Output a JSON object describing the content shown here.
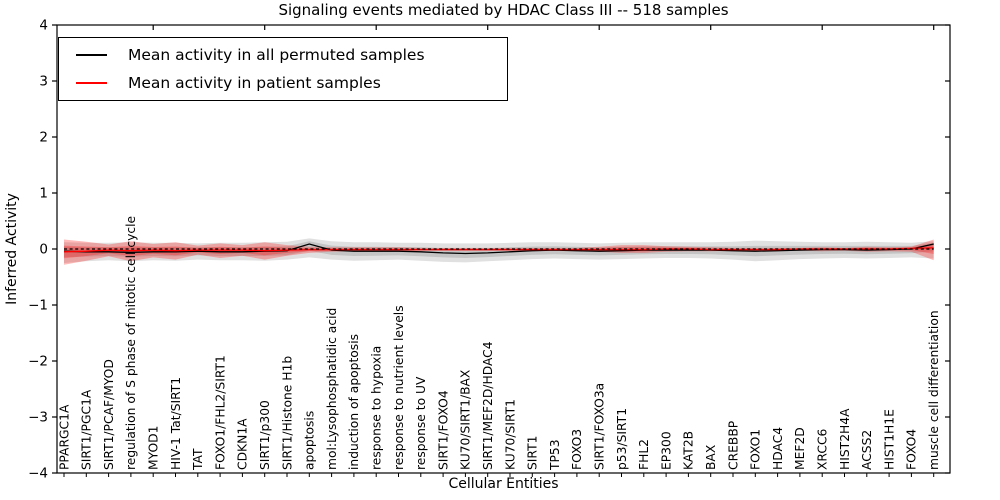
{
  "chart_data": {
    "type": "line",
    "title": "Signaling events mediated by HDAC Class III -- 518 samples",
    "xlabel": "Cellular Entities",
    "ylabel": "Inferred Activity",
    "ylim": [
      -4,
      4
    ],
    "ytick_labels": [
      "4",
      "3",
      "2",
      "1",
      "0",
      "−1",
      "−2",
      "−3",
      "−4"
    ],
    "yticks": [
      4,
      3,
      2,
      1,
      0,
      -1,
      -2,
      -3,
      -4
    ],
    "grid": false,
    "legend_position": "upper left",
    "legend": [
      {
        "label": "Mean activity in all permuted samples",
        "color": "#000000"
      },
      {
        "label": "Mean activity in patient samples",
        "color": "#ff0000"
      }
    ],
    "zero_line": 0,
    "categories": [
      "PPARGC1A",
      "SIRT1/PGC1A",
      "SIRT1/PCAF/MYOD",
      "regulation of S phase of mitotic cell cycle",
      "MYOD1",
      "HIV-1 Tat/SIRT1",
      "TAT",
      "FOXO1/FHL2/SIRT1",
      "CDKN1A",
      "SIRT1/p300",
      "SIRT1/Histone H1b",
      "apoptosis",
      "mol:Lysophosphatidic acid",
      "induction of apoptosis",
      "response to hypoxia",
      "response to nutrient levels",
      "response to UV",
      "SIRT1/FOXO4",
      "KU70/SIRT1/BAX",
      "SIRT1/MEF2D/HDAC4",
      "KU70/SIRT1",
      "SIRT1",
      "TP53",
      "FOXO3",
      "SIRT1/FOXO3a",
      "p53/SIRT1",
      "FHL2",
      "EP300",
      "KAT2B",
      "BAX",
      "CREBBP",
      "FOXO1",
      "HDAC4",
      "MEF2D",
      "XRCC6",
      "HIST2H4A",
      "ACSS2",
      "HIST1H1E",
      "FOXO4",
      "muscle cell differentiation"
    ],
    "top_tick_indices": [
      4,
      9,
      14,
      19,
      24,
      29,
      34,
      39
    ],
    "series": [
      {
        "name": "Mean activity in all permuted samples",
        "color": "#000000",
        "band_color": "rgba(0,0,0,0.12)",
        "values": [
          -0.04,
          -0.05,
          -0.05,
          -0.06,
          -0.05,
          -0.05,
          -0.04,
          -0.05,
          -0.05,
          -0.04,
          -0.03,
          0.09,
          -0.02,
          -0.04,
          -0.04,
          -0.04,
          -0.05,
          -0.07,
          -0.08,
          -0.07,
          -0.05,
          -0.03,
          -0.02,
          -0.03,
          -0.04,
          -0.03,
          -0.02,
          -0.02,
          -0.02,
          -0.02,
          -0.03,
          -0.04,
          -0.03,
          -0.02,
          -0.01,
          -0.01,
          -0.02,
          -0.01,
          0.0,
          0.09
        ],
        "band_upper": [
          0.12,
          0.11,
          0.11,
          0.12,
          0.11,
          0.11,
          0.1,
          0.11,
          0.11,
          0.12,
          0.13,
          0.19,
          0.14,
          0.12,
          0.12,
          0.11,
          0.11,
          0.1,
          0.1,
          0.1,
          0.11,
          0.12,
          0.12,
          0.11,
          0.1,
          0.11,
          0.12,
          0.12,
          0.12,
          0.12,
          0.13,
          0.15,
          0.14,
          0.13,
          0.12,
          0.12,
          0.13,
          0.12,
          0.11,
          0.14
        ],
        "band_lower": [
          -0.25,
          -0.22,
          -0.2,
          -0.22,
          -0.2,
          -0.21,
          -0.19,
          -0.2,
          -0.2,
          -0.21,
          -0.19,
          -0.15,
          -0.19,
          -0.21,
          -0.2,
          -0.19,
          -0.21,
          -0.23,
          -0.24,
          -0.22,
          -0.2,
          -0.18,
          -0.17,
          -0.18,
          -0.19,
          -0.18,
          -0.17,
          -0.16,
          -0.16,
          -0.17,
          -0.19,
          -0.22,
          -0.2,
          -0.18,
          -0.17,
          -0.16,
          -0.17,
          -0.16,
          -0.15,
          -0.17
        ],
        "inner_band_fraction": 0.5
      },
      {
        "name": "Mean activity in patient samples",
        "color": "#ff0000",
        "band_color": "rgba(255,0,0,0.27)",
        "values": [
          -0.05,
          -0.04,
          -0.02,
          -0.03,
          -0.02,
          -0.03,
          -0.02,
          -0.02,
          -0.02,
          -0.03,
          -0.02,
          -0.01,
          -0.01,
          -0.01,
          -0.01,
          -0.01,
          -0.01,
          -0.01,
          -0.01,
          -0.01,
          -0.01,
          -0.01,
          -0.01,
          -0.01,
          -0.01,
          -0.01,
          -0.01,
          0.0,
          0.0,
          -0.01,
          -0.01,
          -0.01,
          -0.01,
          0.0,
          0.0,
          0.0,
          0.0,
          0.0,
          0.01,
          0.02
        ],
        "band_upper": [
          0.17,
          0.13,
          0.08,
          0.14,
          0.09,
          0.12,
          0.06,
          0.1,
          0.07,
          0.12,
          0.07,
          0.04,
          0.03,
          0.03,
          0.03,
          0.03,
          0.02,
          0.02,
          0.02,
          0.02,
          0.02,
          0.02,
          0.02,
          0.02,
          0.04,
          0.07,
          0.07,
          0.05,
          0.04,
          0.03,
          0.02,
          0.02,
          0.02,
          0.02,
          0.03,
          0.02,
          0.04,
          0.03,
          0.04,
          0.17
        ],
        "band_lower": [
          -0.28,
          -0.21,
          -0.13,
          -0.22,
          -0.15,
          -0.19,
          -0.1,
          -0.16,
          -0.12,
          -0.19,
          -0.12,
          -0.07,
          -0.05,
          -0.04,
          -0.04,
          -0.04,
          -0.03,
          -0.03,
          -0.03,
          -0.03,
          -0.03,
          -0.03,
          -0.03,
          -0.03,
          -0.05,
          -0.07,
          -0.07,
          -0.05,
          -0.04,
          -0.04,
          -0.03,
          -0.03,
          -0.03,
          -0.03,
          -0.04,
          -0.03,
          -0.05,
          -0.04,
          -0.05,
          -0.2
        ],
        "inner_band_fraction": 0.5
      }
    ]
  }
}
